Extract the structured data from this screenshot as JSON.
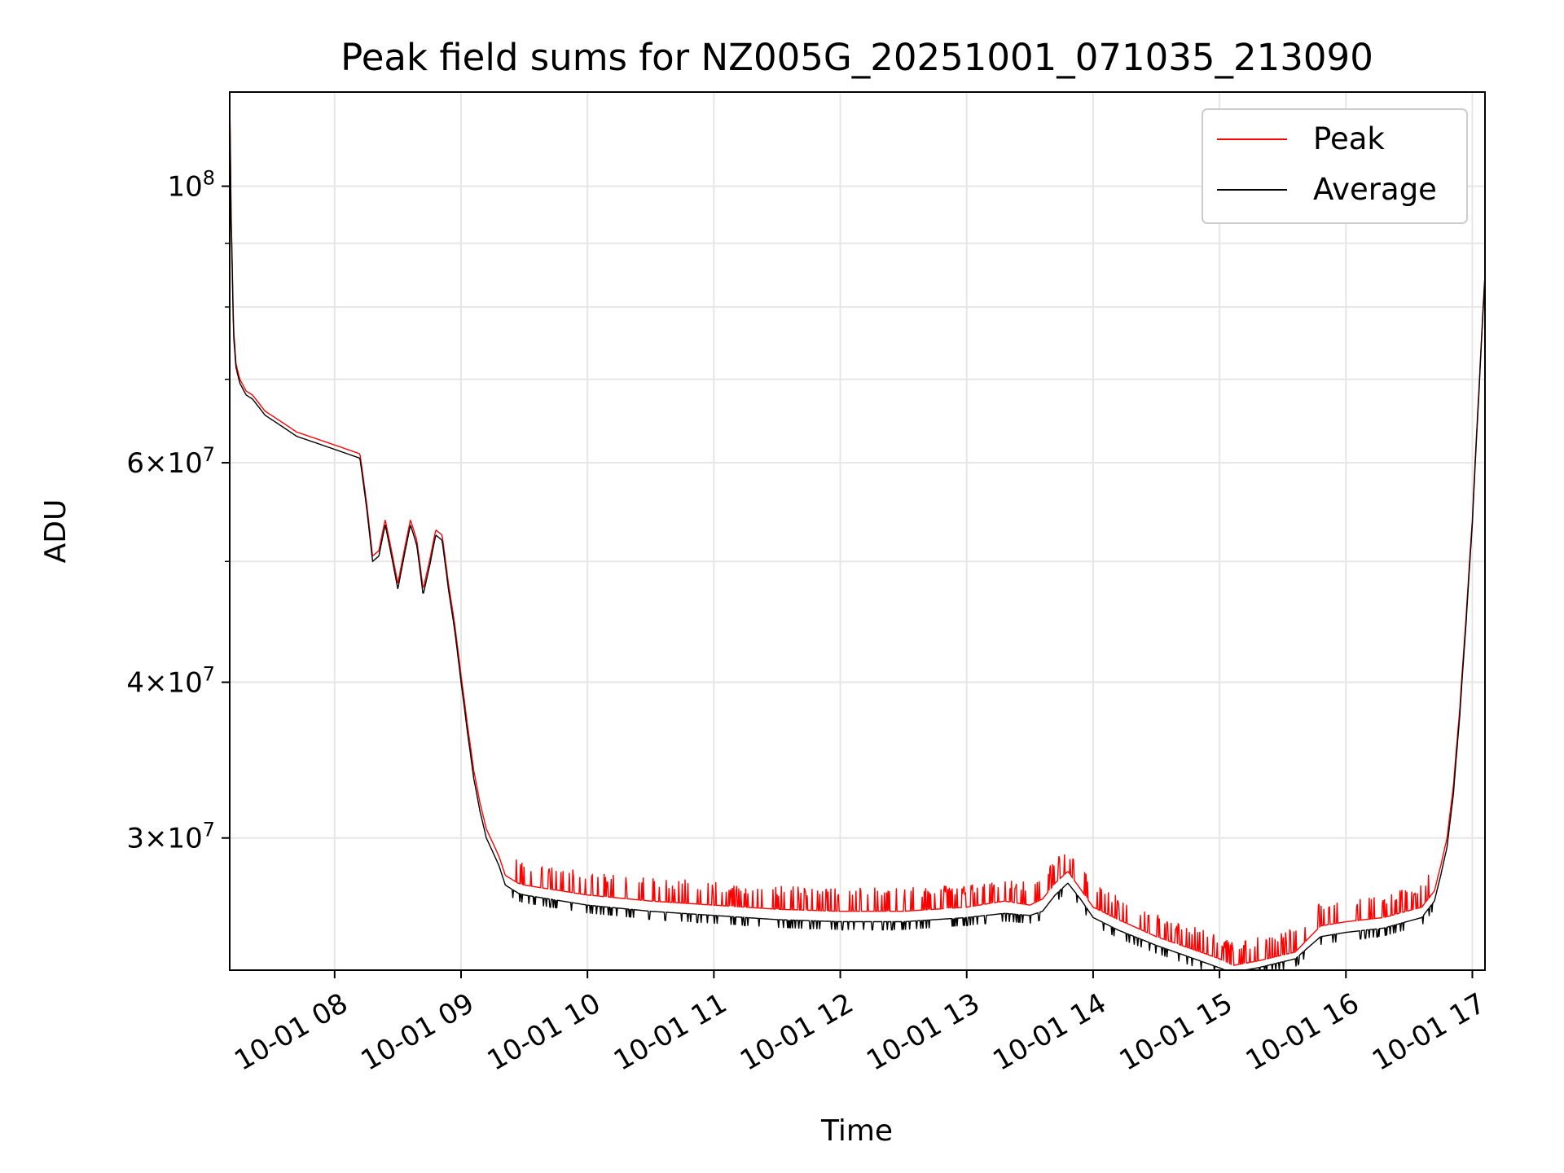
{
  "chart_data": {
    "type": "line",
    "title": "Peak field sums for NZ005G_20251001_071035_213090",
    "xlabel": "Time",
    "ylabel": "ADU",
    "y_scale": "log",
    "grid": true,
    "legend_position": "top-right",
    "xlim_hours": [
      7.17,
      17.1
    ],
    "ylim": [
      23500000,
      119000000
    ],
    "x_ticks": [
      {
        "value": 8,
        "label": "10-01 08"
      },
      {
        "value": 9,
        "label": "10-01 09"
      },
      {
        "value": 10,
        "label": "10-01 10"
      },
      {
        "value": 11,
        "label": "10-01 11"
      },
      {
        "value": 12,
        "label": "10-01 12"
      },
      {
        "value": 13,
        "label": "10-01 13"
      },
      {
        "value": 14,
        "label": "10-01 14"
      },
      {
        "value": 15,
        "label": "10-01 15"
      },
      {
        "value": 16,
        "label": "10-01 16"
      },
      {
        "value": 17,
        "label": "10-01 17"
      }
    ],
    "y_ticks": [
      {
        "value": 30000000,
        "mantissa": "3",
        "exponent": "7"
      },
      {
        "value": 40000000,
        "mantissa": "4",
        "exponent": "7"
      },
      {
        "value": 60000000,
        "mantissa": "6",
        "exponent": "7"
      },
      {
        "value": 100000000,
        "mantissa": "",
        "exponent": "8"
      }
    ],
    "y_minor_ticks": [
      50000000,
      70000000,
      80000000,
      90000000
    ],
    "series": [
      {
        "name": "Peak",
        "color": "#ff0000",
        "spiky": true,
        "x": [
          7.17,
          7.18,
          7.2,
          7.22,
          7.25,
          7.3,
          7.35,
          7.4,
          7.45,
          7.5,
          7.6,
          7.7,
          7.8,
          7.9,
          8.0,
          8.1,
          8.2,
          8.25,
          8.3,
          8.35,
          8.4,
          8.45,
          8.5,
          8.55,
          8.6,
          8.65,
          8.7,
          8.75,
          8.8,
          8.85,
          8.9,
          8.95,
          9.0,
          9.05,
          9.1,
          9.15,
          9.2,
          9.3,
          9.35,
          9.4,
          9.45,
          9.5,
          9.7,
          10.0,
          10.5,
          11.0,
          11.5,
          12.0,
          12.5,
          13.0,
          13.3,
          13.5,
          13.6,
          13.7,
          13.8,
          13.9,
          14.0,
          14.2,
          14.5,
          14.8,
          15.0,
          15.1,
          15.3,
          15.6,
          15.8,
          16.0,
          16.3,
          16.6,
          16.7,
          16.75,
          16.8,
          16.85,
          16.9,
          16.95,
          17.0,
          17.05,
          17.1
        ],
        "y": [
          118000000,
          96000000,
          77000000,
          72000000,
          70000000,
          68500000,
          68000000,
          67000000,
          66000000,
          65500000,
          64500000,
          63500000,
          63000000,
          62500000,
          62000000,
          61500000,
          61000000,
          56000000,
          50500000,
          51000000,
          54000000,
          51000000,
          48000000,
          51000000,
          54000000,
          52000000,
          47500000,
          50000000,
          53000000,
          52500000,
          48000000,
          44500000,
          40500000,
          37000000,
          34000000,
          32000000,
          30500000,
          29000000,
          28000000,
          27800000,
          27600000,
          27500000,
          27300000,
          27000000,
          26700000,
          26500000,
          26300000,
          26200000,
          26200000,
          26400000,
          26700000,
          26500000,
          26800000,
          27600000,
          28200000,
          27300000,
          26400000,
          25800000,
          25000000,
          24400000,
          24000000,
          23700000,
          23900000,
          24300000,
          25500000,
          25700000,
          25900000,
          26400000,
          27200000,
          28500000,
          30000000,
          33000000,
          38000000,
          45000000,
          54000000,
          68000000,
          85000000
        ]
      },
      {
        "name": "Average",
        "color": "#000000",
        "spiky": false,
        "x": [
          7.17,
          7.18,
          7.2,
          7.22,
          7.25,
          7.3,
          7.35,
          7.4,
          7.45,
          7.5,
          7.6,
          7.7,
          7.8,
          7.9,
          8.0,
          8.1,
          8.2,
          8.25,
          8.3,
          8.35,
          8.4,
          8.45,
          8.5,
          8.55,
          8.6,
          8.65,
          8.7,
          8.75,
          8.8,
          8.85,
          8.9,
          8.95,
          9.0,
          9.05,
          9.1,
          9.15,
          9.2,
          9.3,
          9.35,
          9.4,
          9.45,
          9.5,
          9.7,
          10.0,
          10.5,
          11.0,
          11.5,
          12.0,
          12.5,
          13.0,
          13.3,
          13.5,
          13.6,
          13.7,
          13.8,
          13.9,
          14.0,
          14.2,
          14.5,
          14.8,
          15.0,
          15.1,
          15.3,
          15.6,
          15.8,
          16.0,
          16.3,
          16.6,
          16.7,
          16.75,
          16.8,
          16.85,
          16.9,
          16.95,
          17.0,
          17.05,
          17.1
        ],
        "y": [
          117000000,
          95000000,
          76000000,
          71500000,
          69500000,
          68000000,
          67500000,
          66500000,
          65500000,
          65000000,
          64000000,
          63000000,
          62500000,
          62000000,
          61500000,
          61000000,
          60500000,
          55500000,
          50000000,
          50500000,
          53500000,
          50500000,
          47500000,
          50500000,
          53500000,
          51500000,
          47000000,
          49500000,
          52500000,
          52000000,
          47500000,
          44000000,
          40000000,
          36500000,
          33500000,
          31500000,
          30000000,
          28500000,
          27500000,
          27300000,
          27100000,
          27000000,
          26800000,
          26500000,
          26200000,
          26000000,
          25800000,
          25700000,
          25700000,
          25900000,
          26100000,
          26000000,
          26200000,
          27000000,
          27600000,
          26800000,
          25900000,
          25300000,
          24600000,
          24000000,
          23600000,
          23400000,
          23600000,
          24000000,
          25000000,
          25200000,
          25400000,
          25900000,
          26700000,
          28000000,
          29500000,
          32500000,
          37500000,
          44500000,
          53500000,
          67500000,
          84500000
        ]
      }
    ]
  }
}
